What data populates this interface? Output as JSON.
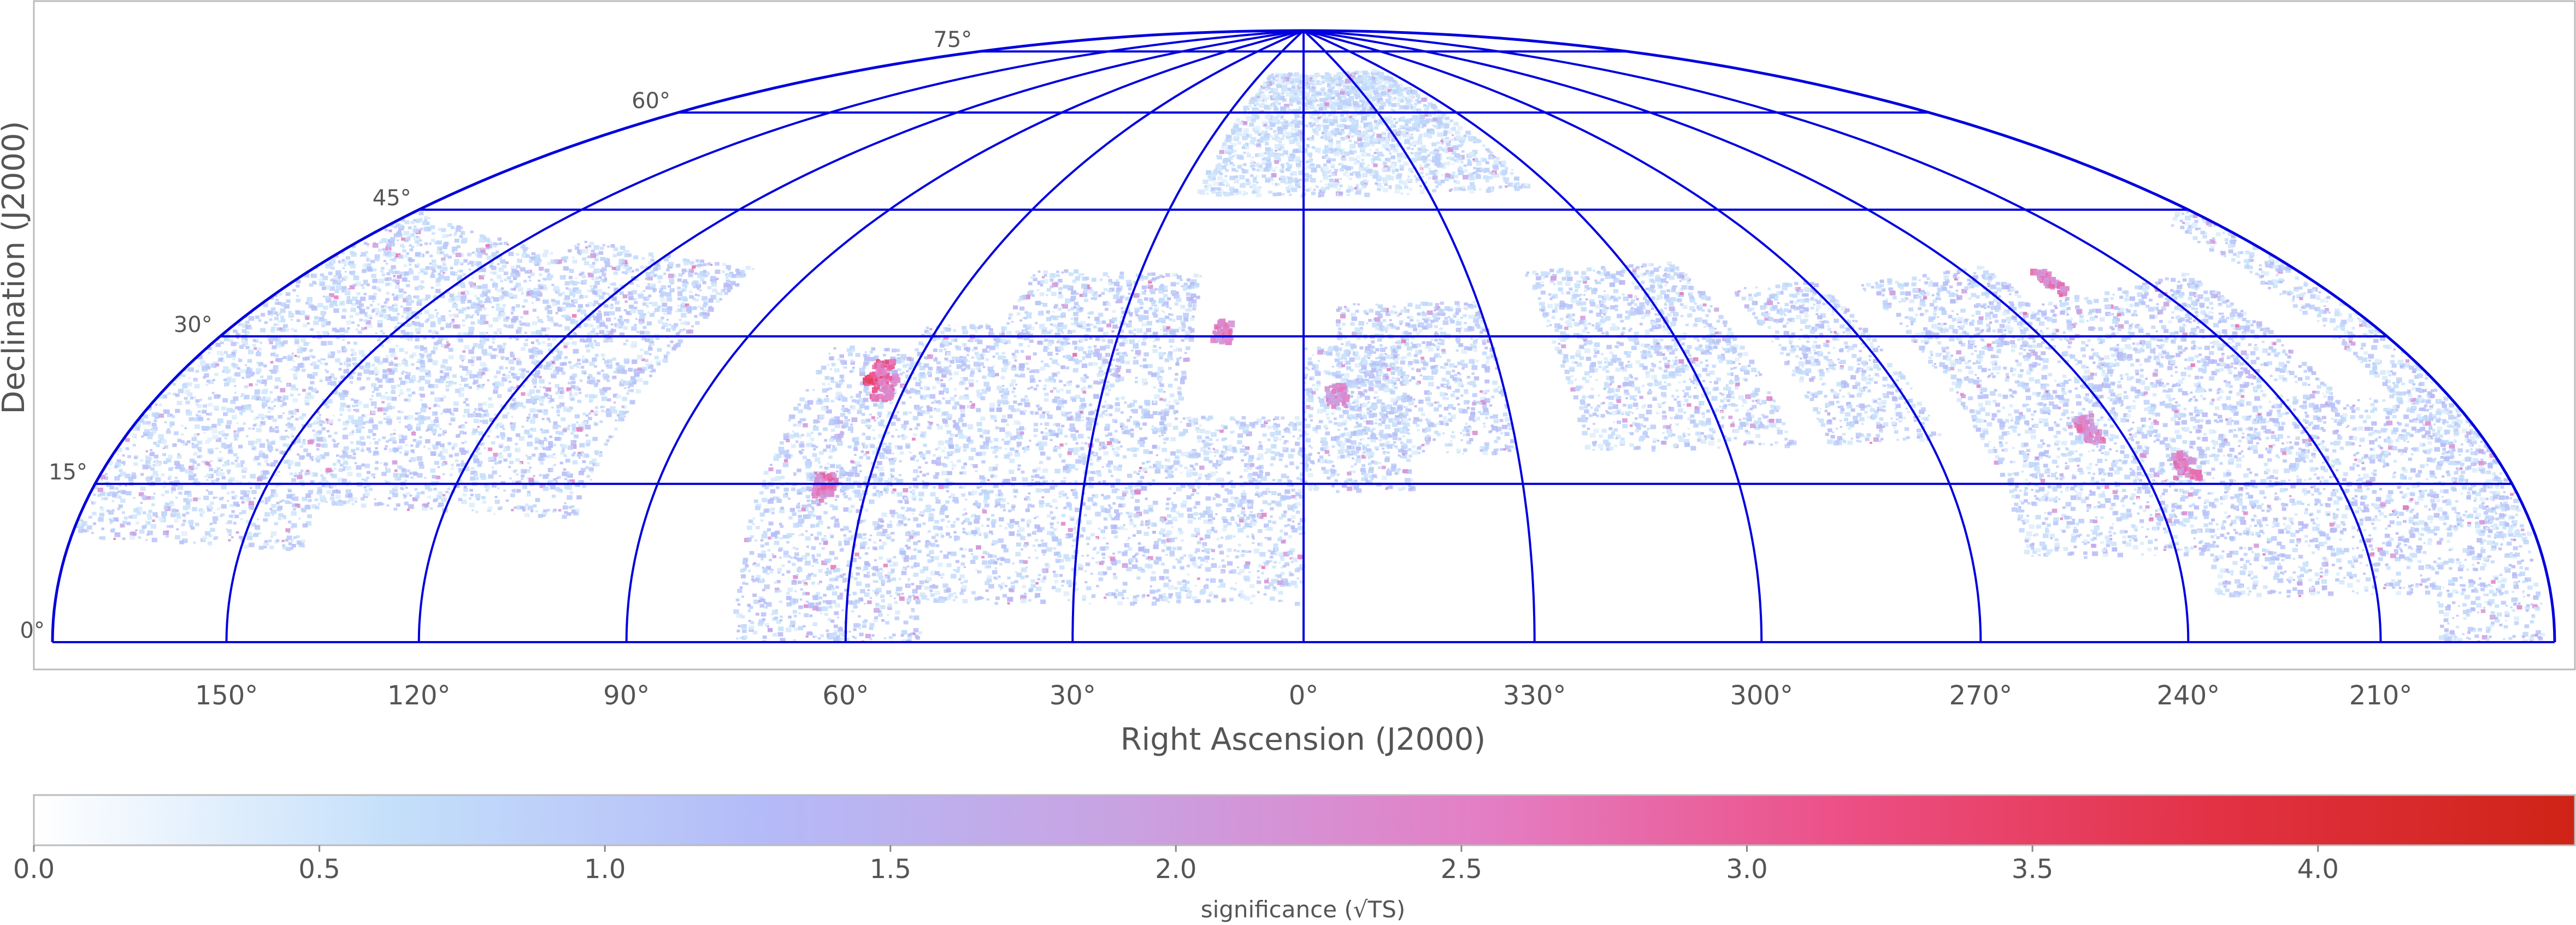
{
  "chart_data": {
    "type": "heatmap",
    "projection": "hammer-aitoff (northern hemisphere, declination 0° to 90°)",
    "xlabel": "Right Ascension (J2000)",
    "ylabel": "Declination (J2000)",
    "ra_ticks": [
      {
        "value": 150,
        "label": "150°"
      },
      {
        "value": 120,
        "label": "120°"
      },
      {
        "value": 90,
        "label": "90°"
      },
      {
        "value": 60,
        "label": "60°"
      },
      {
        "value": 30,
        "label": "30°"
      },
      {
        "value": 0,
        "label": "0°"
      },
      {
        "value": 330,
        "label": "330°"
      },
      {
        "value": 300,
        "label": "300°"
      },
      {
        "value": 270,
        "label": "270°"
      },
      {
        "value": 240,
        "label": "240°"
      },
      {
        "value": 210,
        "label": "210°"
      }
    ],
    "dec_ticks": [
      {
        "value": 0,
        "label": "0°"
      },
      {
        "value": 15,
        "label": "15°"
      },
      {
        "value": 30,
        "label": "30°"
      },
      {
        "value": 45,
        "label": "45°"
      },
      {
        "value": 60,
        "label": "60°"
      },
      {
        "value": 75,
        "label": "75°"
      }
    ],
    "meridians_deg": [
      -150,
      -120,
      -90,
      -60,
      -30,
      0,
      30,
      60,
      90,
      120,
      150
    ],
    "parallels_deg": [
      0,
      15,
      30,
      45,
      60,
      75
    ],
    "grid": true,
    "grid_color": "#0000dd",
    "colorbar": {
      "label": "significance (√TS)",
      "range": [
        0.0,
        4.45
      ],
      "tick_labels": [
        "0.0",
        "0.5",
        "1.0",
        "1.5",
        "2.0",
        "2.5",
        "3.0",
        "3.5",
        "4.0"
      ],
      "tick_values": [
        0.0,
        0.5,
        1.0,
        1.5,
        2.0,
        2.5,
        3.0,
        3.5,
        4.0
      ],
      "colors": [
        "#ffffff",
        "#c4dffa",
        "#b4bbf8",
        "#c9a2e2",
        "#e47ec4",
        "#ec4f85",
        "#e23245",
        "#cf2316"
      ]
    },
    "survey_regions": [
      {
        "ra": [
          140,
          190
        ],
        "dec": [
          10,
          45
        ],
        "level": 0.75
      },
      {
        "ra": [
          100,
          140
        ],
        "dec": [
          15,
          47
        ],
        "level": 0.8
      },
      {
        "ra": [
          62,
          75
        ],
        "dec": [
          0,
          38
        ],
        "level": 0.85
      },
      {
        "ra": [
          50,
          62
        ],
        "dec": [
          0,
          42
        ],
        "level": 0.85
      },
      {
        "ra": [
          18,
          50
        ],
        "dec": [
          5,
          50
        ],
        "level": 0.8
      },
      {
        "ra": [
          0,
          18
        ],
        "dec": [
          5,
          30
        ],
        "level": 0.75
      },
      {
        "ra": [
          345,
          360
        ],
        "dec": [
          20,
          40
        ],
        "level": 0.75
      },
      {
        "ra": [
          330,
          355
        ],
        "dec": [
          25,
          46
        ],
        "level": 0.8
      },
      {
        "ra": [
          290,
          320
        ],
        "dec": [
          25,
          50
        ],
        "level": 0.75
      },
      {
        "ra": [
          268,
          285
        ],
        "dec": [
          25,
          46
        ],
        "level": 0.8
      },
      {
        "ra": [
          235,
          262
        ],
        "dec": [
          10,
          45
        ],
        "level": 0.8
      },
      {
        "ra": [
          200,
          235
        ],
        "dec": [
          5,
          40
        ],
        "level": 0.85
      },
      {
        "ra": [
          182,
          200
        ],
        "dec": [
          0,
          25
        ],
        "level": 0.8
      },
      {
        "ra": [
          305,
          25
        ],
        "dec": [
          62,
          82
        ],
        "level": 0.6
      }
    ],
    "hotspots": [
      {
        "ra": 65,
        "dec": 35,
        "value": 3.4
      },
      {
        "ra": 63,
        "dec": 33,
        "value": 3.0
      },
      {
        "ra": 66,
        "dec": 20,
        "value": 2.8
      },
      {
        "ra": 227,
        "dec": 42,
        "value": 2.7
      },
      {
        "ra": 233,
        "dec": 20,
        "value": 2.7
      },
      {
        "ra": 245,
        "dec": 25,
        "value": 2.6
      },
      {
        "ra": 13,
        "dec": 42,
        "value": 2.6
      },
      {
        "ra": 355,
        "dec": 33,
        "value": 2.4
      }
    ]
  }
}
